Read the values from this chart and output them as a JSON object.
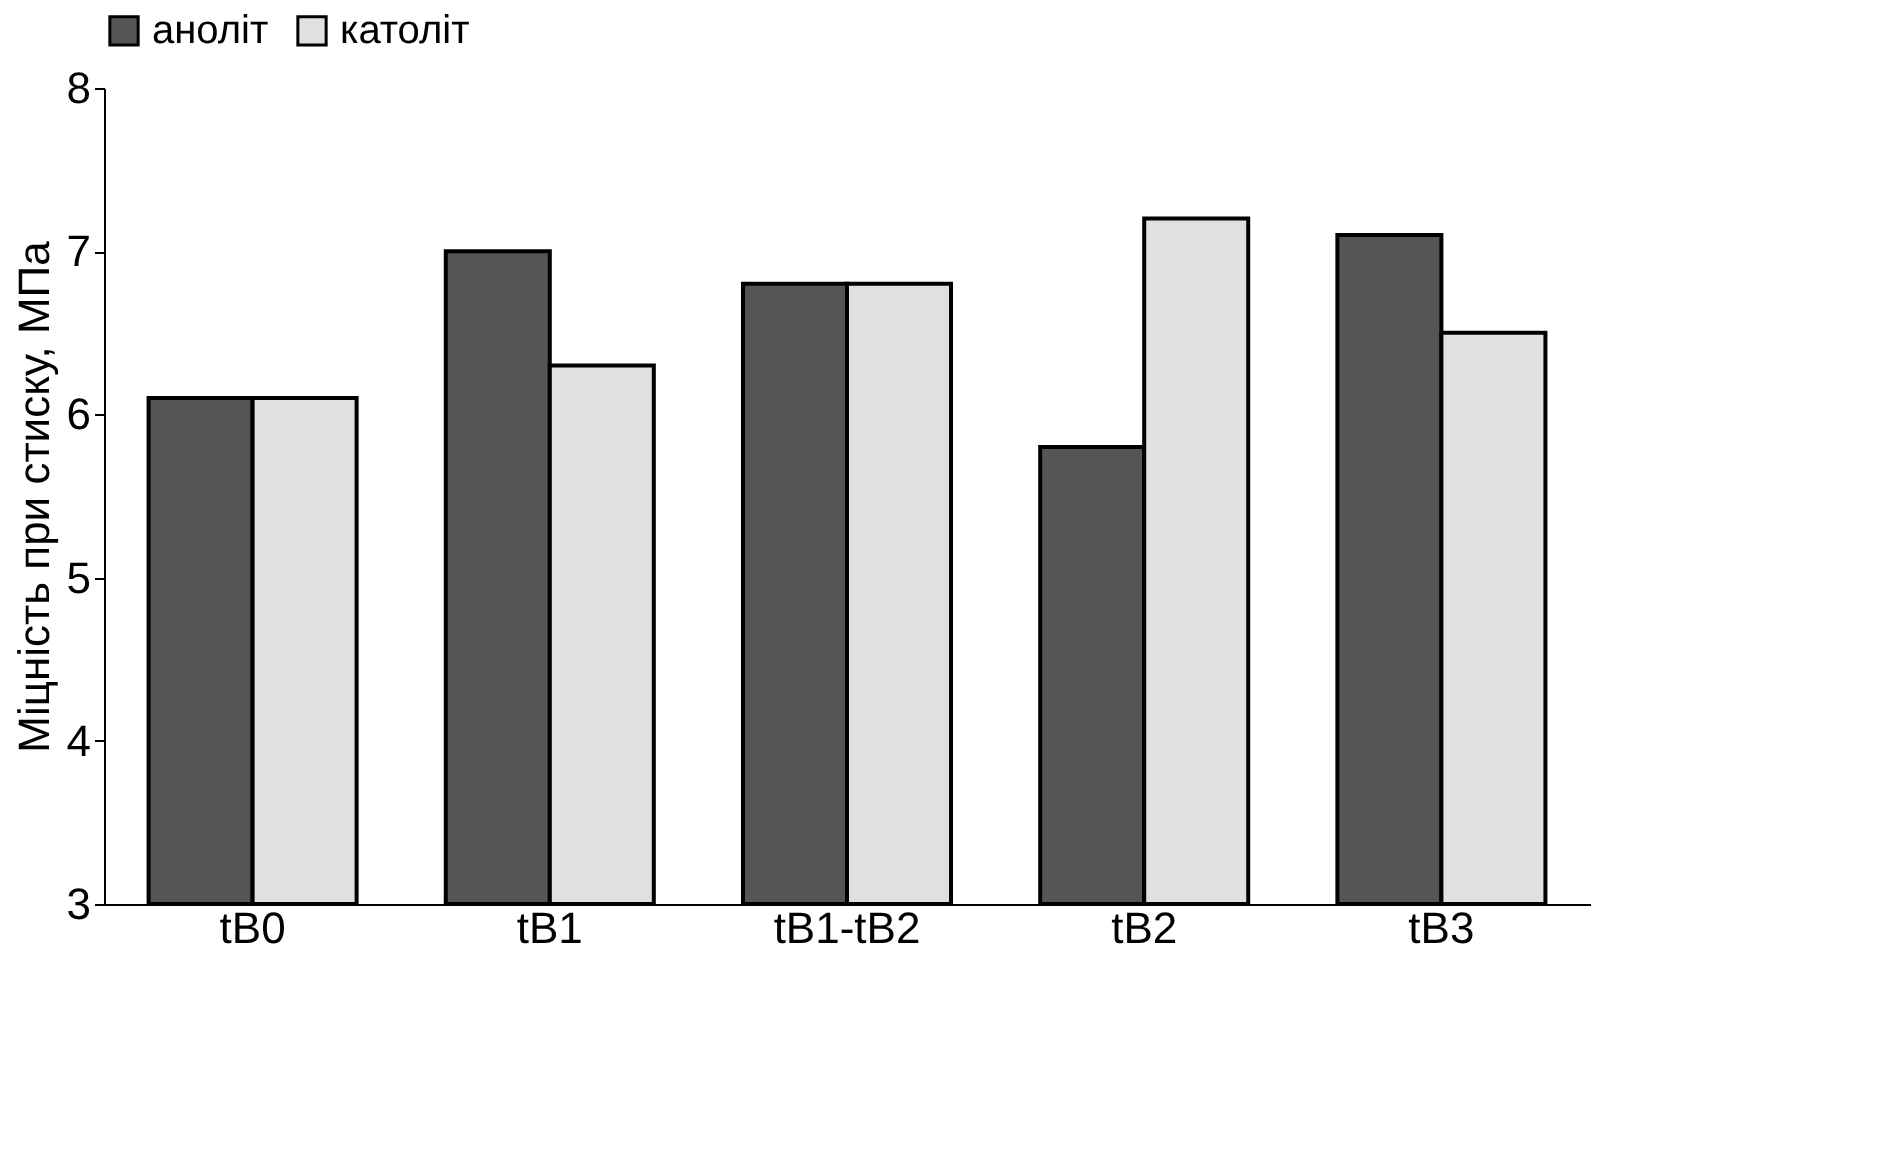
{
  "chart_data": {
    "type": "bar",
    "ylabel": "Міцність при стиску, МПа",
    "categories": [
      "tВ0",
      "tВ1",
      "tВ1-tВ2",
      "tВ2",
      "tВ3"
    ],
    "series": [
      {
        "name": "аноліт",
        "color": "#555555",
        "values": [
          6.1,
          7.0,
          6.8,
          5.8,
          7.1
        ]
      },
      {
        "name": "католіт",
        "color": "#e0e0e0",
        "values": [
          6.1,
          6.3,
          6.8,
          7.2,
          6.5
        ]
      }
    ],
    "ylim": [
      3,
      8
    ],
    "yticks": [
      3,
      4,
      5,
      6,
      7,
      8
    ],
    "grid": false,
    "legend": "top"
  }
}
